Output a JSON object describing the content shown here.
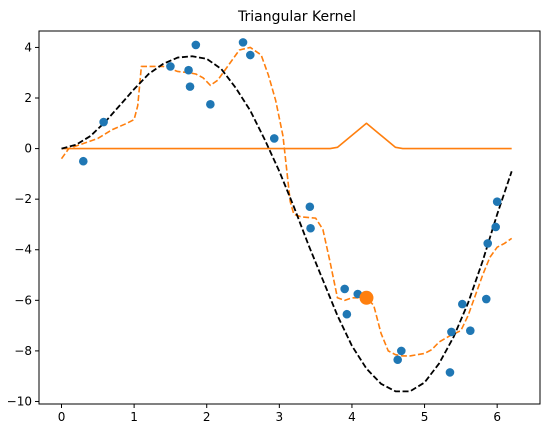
{
  "chart_data": {
    "type": "scatter",
    "title": "Triangular Kernel",
    "xlabel": "",
    "ylabel": "",
    "xlim": [
      -0.31,
      6.59
    ],
    "ylim": [
      -10.1,
      4.65
    ],
    "xticks": [
      0,
      1,
      2,
      3,
      4,
      5,
      6
    ],
    "yticks": [
      -10,
      -8,
      -6,
      -4,
      -2,
      0,
      2,
      4
    ],
    "xtick_labels": [
      "0",
      "1",
      "2",
      "3",
      "4",
      "5",
      "6"
    ],
    "ytick_labels": [
      "−10",
      "−8",
      "−6",
      "−4",
      "−2",
      "0",
      "2",
      "4"
    ],
    "grid": false,
    "legend": false,
    "colors": {
      "points": "#1f77b4",
      "kernel": "#ff7f0e",
      "smoothed": "#ff7f0e",
      "truth": "#000000",
      "highlight": "#ff7f0e"
    },
    "true_curve": {
      "style": "dashed",
      "x": [
        0.0,
        0.2,
        0.4,
        0.6,
        0.8,
        1.0,
        1.2,
        1.4,
        1.6,
        1.8,
        2.0,
        2.2,
        2.4,
        2.6,
        2.8,
        3.0,
        3.2,
        3.4,
        3.6,
        3.8,
        4.0,
        4.2,
        4.4,
        4.6,
        4.8,
        5.0,
        5.2,
        5.4,
        5.6,
        5.8,
        6.0,
        6.2
      ],
      "y": [
        0.0,
        0.15,
        0.5,
        1.05,
        1.7,
        2.35,
        2.95,
        3.35,
        3.6,
        3.65,
        3.55,
        3.15,
        2.4,
        1.5,
        0.35,
        -0.9,
        -2.3,
        -3.8,
        -5.2,
        -6.6,
        -7.8,
        -8.7,
        -9.3,
        -9.6,
        -9.6,
        -9.25,
        -8.5,
        -7.45,
        -6.1,
        -4.45,
        -2.6,
        -0.9
      ]
    },
    "observations": {
      "x": [
        0.3,
        0.58,
        1.5,
        1.75,
        1.77,
        1.85,
        2.05,
        2.5,
        2.6,
        2.93,
        3.42,
        3.43,
        3.9,
        3.93,
        4.08,
        4.63,
        4.68,
        5.35,
        5.37,
        5.52,
        5.63,
        5.85,
        5.87,
        5.98,
        6.0
      ],
      "y": [
        -0.5,
        1.05,
        3.25,
        3.1,
        2.45,
        4.1,
        1.75,
        4.2,
        3.7,
        0.4,
        -2.3,
        -3.15,
        -5.55,
        -6.55,
        -5.75,
        -8.35,
        -8.0,
        -8.85,
        -7.25,
        -6.15,
        -7.2,
        -5.95,
        -3.75,
        -3.1,
        -2.1
      ]
    },
    "highlight_point": {
      "x": 4.2,
      "y": -5.9
    },
    "kernel_weights": {
      "x": [
        0.0,
        3.7,
        3.8,
        4.2,
        4.6,
        4.7,
        6.2
      ],
      "y": [
        0.0,
        0.0,
        0.05,
        1.0,
        0.05,
        0.0,
        0.0
      ]
    },
    "smoothed_curve": {
      "style": "dashed",
      "x": [
        0.0,
        0.1,
        0.3,
        0.5,
        0.7,
        0.9,
        1.0,
        1.05,
        1.1,
        1.4,
        1.6,
        1.75,
        1.85,
        1.95,
        2.05,
        2.15,
        2.3,
        2.45,
        2.6,
        2.75,
        2.85,
        2.95,
        3.05,
        3.1,
        3.15,
        3.2,
        3.3,
        3.5,
        3.6,
        3.7,
        3.8,
        3.9,
        4.0,
        4.1,
        4.2,
        4.3,
        4.4,
        4.5,
        4.6,
        4.7,
        4.8,
        4.9,
        5.0,
        5.1,
        5.2,
        5.35,
        5.5,
        5.6,
        5.7,
        5.8,
        5.9,
        6.0,
        6.1,
        6.2
      ],
      "y": [
        -0.4,
        0.0,
        0.2,
        0.4,
        0.75,
        1.0,
        1.15,
        1.7,
        3.25,
        3.25,
        3.05,
        3.0,
        2.95,
        2.8,
        2.5,
        2.7,
        3.3,
        3.9,
        4.0,
        3.7,
        2.9,
        1.9,
        0.5,
        -0.8,
        -2.1,
        -2.6,
        -2.7,
        -2.75,
        -3.2,
        -4.5,
        -5.9,
        -6.0,
        -5.9,
        -5.9,
        -5.9,
        -6.2,
        -7.3,
        -8.0,
        -8.15,
        -8.2,
        -8.2,
        -8.15,
        -8.1,
        -7.95,
        -7.65,
        -7.4,
        -7.2,
        -6.6,
        -5.8,
        -5.0,
        -4.3,
        -3.9,
        -3.75,
        -3.55
      ]
    }
  }
}
